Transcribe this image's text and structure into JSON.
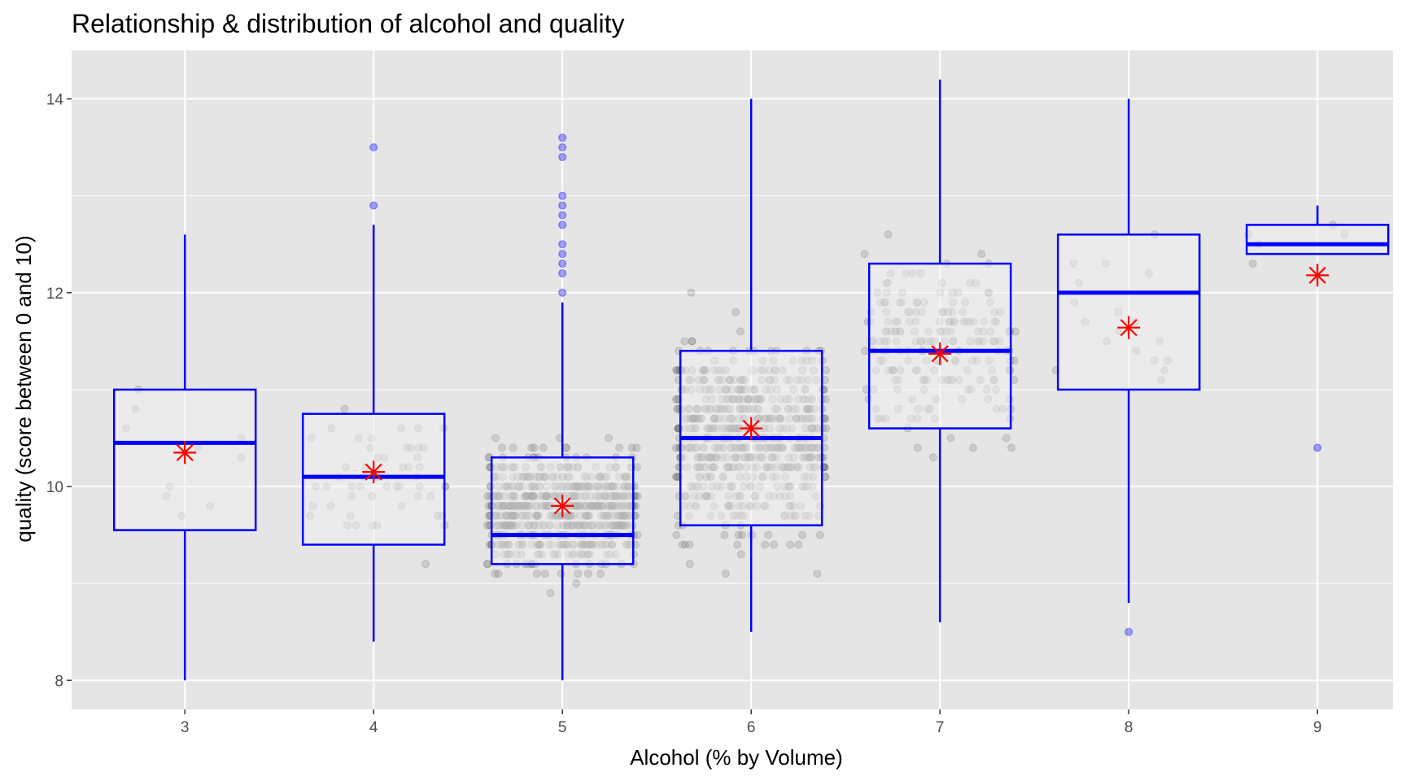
{
  "chart_data": {
    "type": "boxplot",
    "title": "Relationship & distribution of alcohol and quality",
    "xlabel": "Alcohol (% by Volume)",
    "ylabel": "quality (score between 0 and 10)",
    "categories": [
      "3",
      "4",
      "5",
      "6",
      "7",
      "8",
      "9"
    ],
    "xlim": [
      2.4,
      9.4
    ],
    "ylim": [
      7.7,
      14.5
    ],
    "y_ticks": [
      8,
      10,
      12,
      14
    ],
    "grid": true,
    "legend": "none",
    "colors": {
      "panel": "#e5e5e5",
      "grid": "#ffffff",
      "box": "#0000ff",
      "box_fill": "#f0f0f0",
      "mean_marker": "#ff0000",
      "points": "#595959"
    },
    "boxes": [
      {
        "category": "3",
        "min": 8.0,
        "q1": 9.55,
        "median": 10.45,
        "q3": 11.0,
        "max": 12.6,
        "mean": 10.35,
        "outliers": []
      },
      {
        "category": "4",
        "min": 8.4,
        "q1": 9.4,
        "median": 10.1,
        "q3": 10.75,
        "max": 12.7,
        "mean": 10.15,
        "outliers": [
          12.9,
          13.5
        ]
      },
      {
        "category": "5",
        "min": 8.0,
        "q1": 9.2,
        "median": 9.5,
        "q3": 10.3,
        "max": 11.9,
        "mean": 9.8,
        "outliers": [
          12.0,
          12.2,
          12.3,
          12.4,
          12.5,
          12.7,
          12.8,
          12.9,
          13.0,
          13.4,
          13.5,
          13.6
        ]
      },
      {
        "category": "6",
        "min": 8.5,
        "q1": 9.6,
        "median": 10.5,
        "q3": 11.4,
        "max": 14.0,
        "mean": 10.6,
        "outliers": []
      },
      {
        "category": "7",
        "min": 8.6,
        "q1": 10.6,
        "median": 11.4,
        "q3": 12.3,
        "max": 14.2,
        "mean": 11.37,
        "outliers": []
      },
      {
        "category": "8",
        "min": 8.8,
        "q1": 11.0,
        "median": 12.0,
        "q3": 12.6,
        "max": 14.0,
        "mean": 11.64,
        "outliers": [
          8.5
        ]
      },
      {
        "category": "9",
        "min": 12.4,
        "q1": 12.4,
        "median": 12.5,
        "q3": 12.7,
        "max": 12.9,
        "mean": 12.18,
        "outliers": [
          10.4
        ]
      }
    ],
    "jitter_counts": [
      10,
      53,
      681,
      638,
      199,
      18,
      5
    ]
  }
}
